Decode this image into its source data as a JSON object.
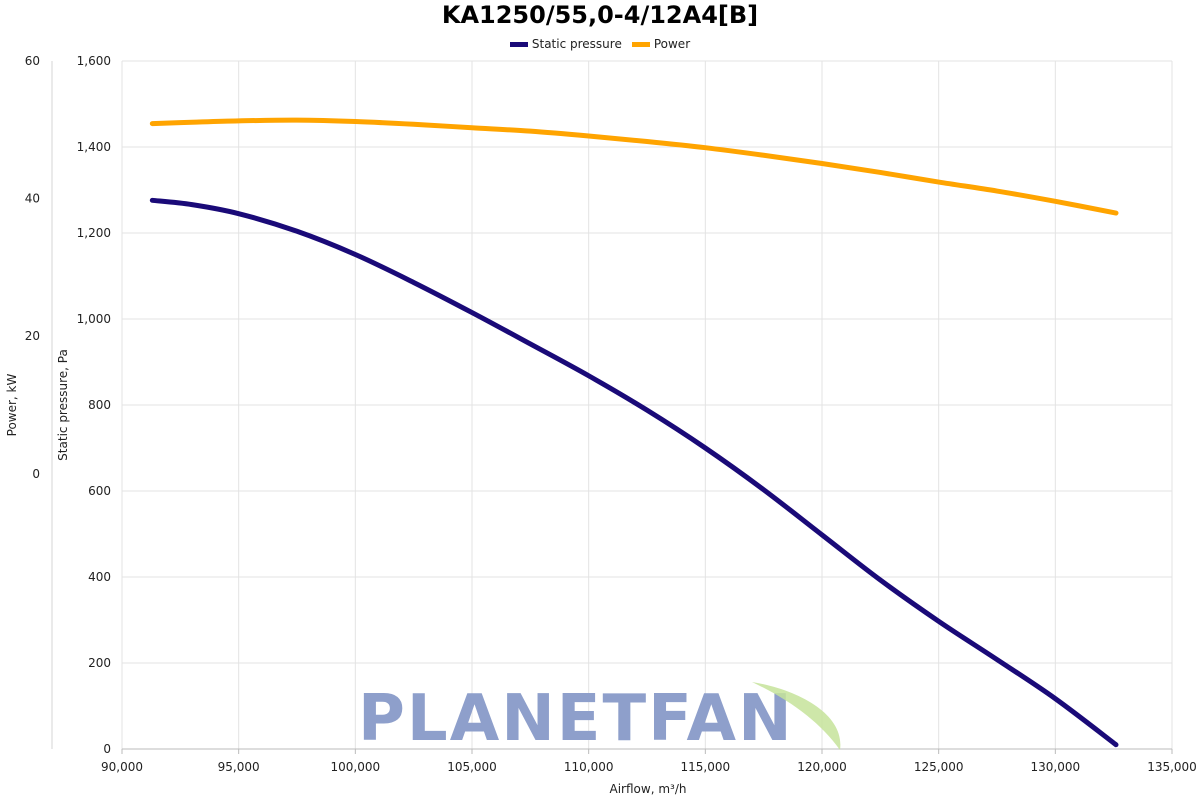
{
  "chart_data": {
    "type": "line",
    "title": "KA1250/55,0-4/12A4[B]",
    "xlabel": "Airflow, m³/h",
    "ylabel": "Static pressure, Pa",
    "ylabel2": "Power, kW",
    "xlim": [
      90000,
      135000
    ],
    "ylim": [
      0,
      1600
    ],
    "ylim2": [
      -40,
      60
    ],
    "x_ticks": [
      "90,000",
      "95,000",
      "100,000",
      "105,000",
      "110,000",
      "115,000",
      "120,000",
      "125,000",
      "130,000",
      "135,000"
    ],
    "y_ticks": [
      "0",
      "200",
      "400",
      "600",
      "800",
      "1,000",
      "1,200",
      "1,400",
      "1,600"
    ],
    "y2_ticks": [
      "0",
      "20",
      "40",
      "60"
    ],
    "grid": true,
    "legend_position": "top-center",
    "series": [
      {
        "name": "Static pressure",
        "color": "#1a0a78",
        "axis": "left",
        "x": [
          91300,
          93000,
          95000,
          97500,
          100000,
          102500,
          105000,
          107500,
          110000,
          112500,
          115000,
          117500,
          120000,
          122500,
          125000,
          127500,
          130000,
          132600
        ],
        "y": [
          1276,
          1266,
          1245,
          1204,
          1150,
          1085,
          1015,
          942,
          868,
          788,
          700,
          603,
          498,
          393,
          297,
          208,
          117,
          10
        ]
      },
      {
        "name": "Power",
        "color": "#ffa400",
        "axis": "right",
        "x": [
          91300,
          93000,
          95000,
          97500,
          100000,
          102500,
          105000,
          107500,
          110000,
          112500,
          115000,
          117500,
          120000,
          122500,
          125000,
          127500,
          130000,
          132600
        ],
        "y": [
          50.9,
          51.1,
          51.3,
          51.4,
          51.2,
          50.8,
          50.3,
          49.8,
          49.1,
          48.3,
          47.4,
          46.3,
          45.1,
          43.8,
          42.4,
          41.1,
          39.6,
          37.9
        ]
      }
    ]
  },
  "watermark": {
    "text": "PLANETFAN",
    "color": "#8e9fcb",
    "leaf_color": "#c6e39a"
  }
}
